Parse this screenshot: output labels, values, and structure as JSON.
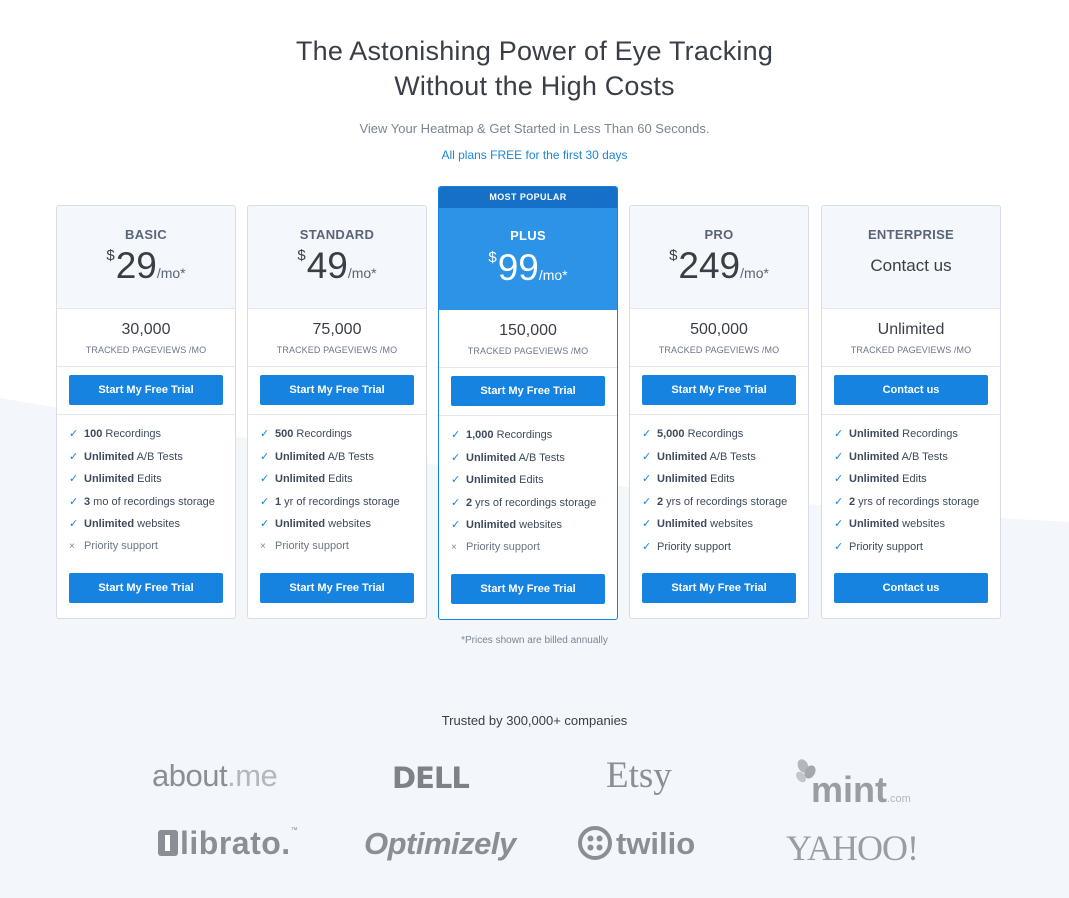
{
  "hero": {
    "title_line1": "The Astonishing Power of Eye Tracking",
    "title_line2": "Without the High Costs",
    "subtitle": "View Your Heatmap & Get Started in Less Than 60 Seconds.",
    "free_note": "All plans FREE for the first 30 days"
  },
  "colors": {
    "accent": "#1683e0",
    "featured_header": "#2d93e6",
    "badge": "#1670c8"
  },
  "plans": [
    {
      "name": "BASIC",
      "currency": "$",
      "amount": "29",
      "period": "/mo*",
      "views": "30,000",
      "views_label": "TRACKED PAGEVIEWS /MO",
      "cta": "Start My Free Trial",
      "features": [
        {
          "bold": "100",
          "text": " Recordings",
          "included": true
        },
        {
          "bold": "Unlimited",
          "text": " A/B Tests",
          "included": true
        },
        {
          "bold": "Unlimited",
          "text": " Edits",
          "included": true
        },
        {
          "bold": "3",
          "text": " mo of recordings storage",
          "included": true
        },
        {
          "bold": "Unlimited",
          "text": " websites",
          "included": true
        },
        {
          "bold": "",
          "text": "Priority support",
          "included": false
        }
      ]
    },
    {
      "name": "STANDARD",
      "currency": "$",
      "amount": "49",
      "period": "/mo*",
      "views": "75,000",
      "views_label": "TRACKED PAGEVIEWS /MO",
      "cta": "Start My Free Trial",
      "features": [
        {
          "bold": "500",
          "text": " Recordings",
          "included": true
        },
        {
          "bold": "Unlimited",
          "text": " A/B Tests",
          "included": true
        },
        {
          "bold": "Unlimited",
          "text": " Edits",
          "included": true
        },
        {
          "bold": "1",
          "text": " yr of recordings storage",
          "included": true
        },
        {
          "bold": "Unlimited",
          "text": " websites",
          "included": true
        },
        {
          "bold": "",
          "text": "Priority support",
          "included": false
        }
      ]
    },
    {
      "badge": "MOST POPULAR",
      "name": "PLUS",
      "currency": "$",
      "amount": "99",
      "period": "/mo*",
      "views": "150,000",
      "views_label": "TRACKED PAGEVIEWS /MO",
      "cta": "Start My Free Trial",
      "features": [
        {
          "bold": "1,000",
          "text": " Recordings",
          "included": true
        },
        {
          "bold": "Unlimited",
          "text": " A/B Tests",
          "included": true
        },
        {
          "bold": "Unlimited",
          "text": " Edits",
          "included": true
        },
        {
          "bold": "2",
          "text": " yrs of recordings storage",
          "included": true
        },
        {
          "bold": "Unlimited",
          "text": " websites",
          "included": true
        },
        {
          "bold": "",
          "text": "Priority support",
          "included": false
        }
      ]
    },
    {
      "name": "PRO",
      "currency": "$",
      "amount": "249",
      "period": "/mo*",
      "views": "500,000",
      "views_label": "TRACKED PAGEVIEWS /MO",
      "cta": "Start My Free Trial",
      "features": [
        {
          "bold": "5,000",
          "text": " Recordings",
          "included": true
        },
        {
          "bold": "Unlimited",
          "text": " A/B Tests",
          "included": true
        },
        {
          "bold": "Unlimited",
          "text": " Edits",
          "included": true
        },
        {
          "bold": "2",
          "text": " yrs of recordings storage",
          "included": true
        },
        {
          "bold": "Unlimited",
          "text": " websites",
          "included": true
        },
        {
          "bold": "",
          "text": "Priority support",
          "included": true
        }
      ]
    },
    {
      "name": "ENTERPRISE",
      "contact_label": "Contact us",
      "views": "Unlimited",
      "views_label": "TRACKED PAGEVIEWS /MO",
      "cta": "Contact us",
      "features": [
        {
          "bold": "Unlimited",
          "text": " Recordings",
          "included": true
        },
        {
          "bold": "Unlimited",
          "text": " A/B Tests",
          "included": true
        },
        {
          "bold": "Unlimited",
          "text": " Edits",
          "included": true
        },
        {
          "bold": "2",
          "text": " yrs of recordings storage",
          "included": true
        },
        {
          "bold": "Unlimited",
          "text": " websites",
          "included": true
        },
        {
          "bold": "",
          "text": "Priority support",
          "included": true
        }
      ]
    }
  ],
  "marks": {
    "check": "✓",
    "cross": "×"
  },
  "footnote": "*Prices shown are billed annually",
  "trusted": "Trusted by 300,000+ companies",
  "logos": {
    "aboutme_a": "about",
    "aboutme_b": ".me",
    "dell": "DELL",
    "etsy": "Etsy",
    "mint": "mint",
    "mint_com": ".com",
    "librato": "librato.",
    "librato_tm": "™",
    "optimizely": "Optimizely",
    "twilio": "twilio",
    "yahoo": "YAHOO!"
  }
}
